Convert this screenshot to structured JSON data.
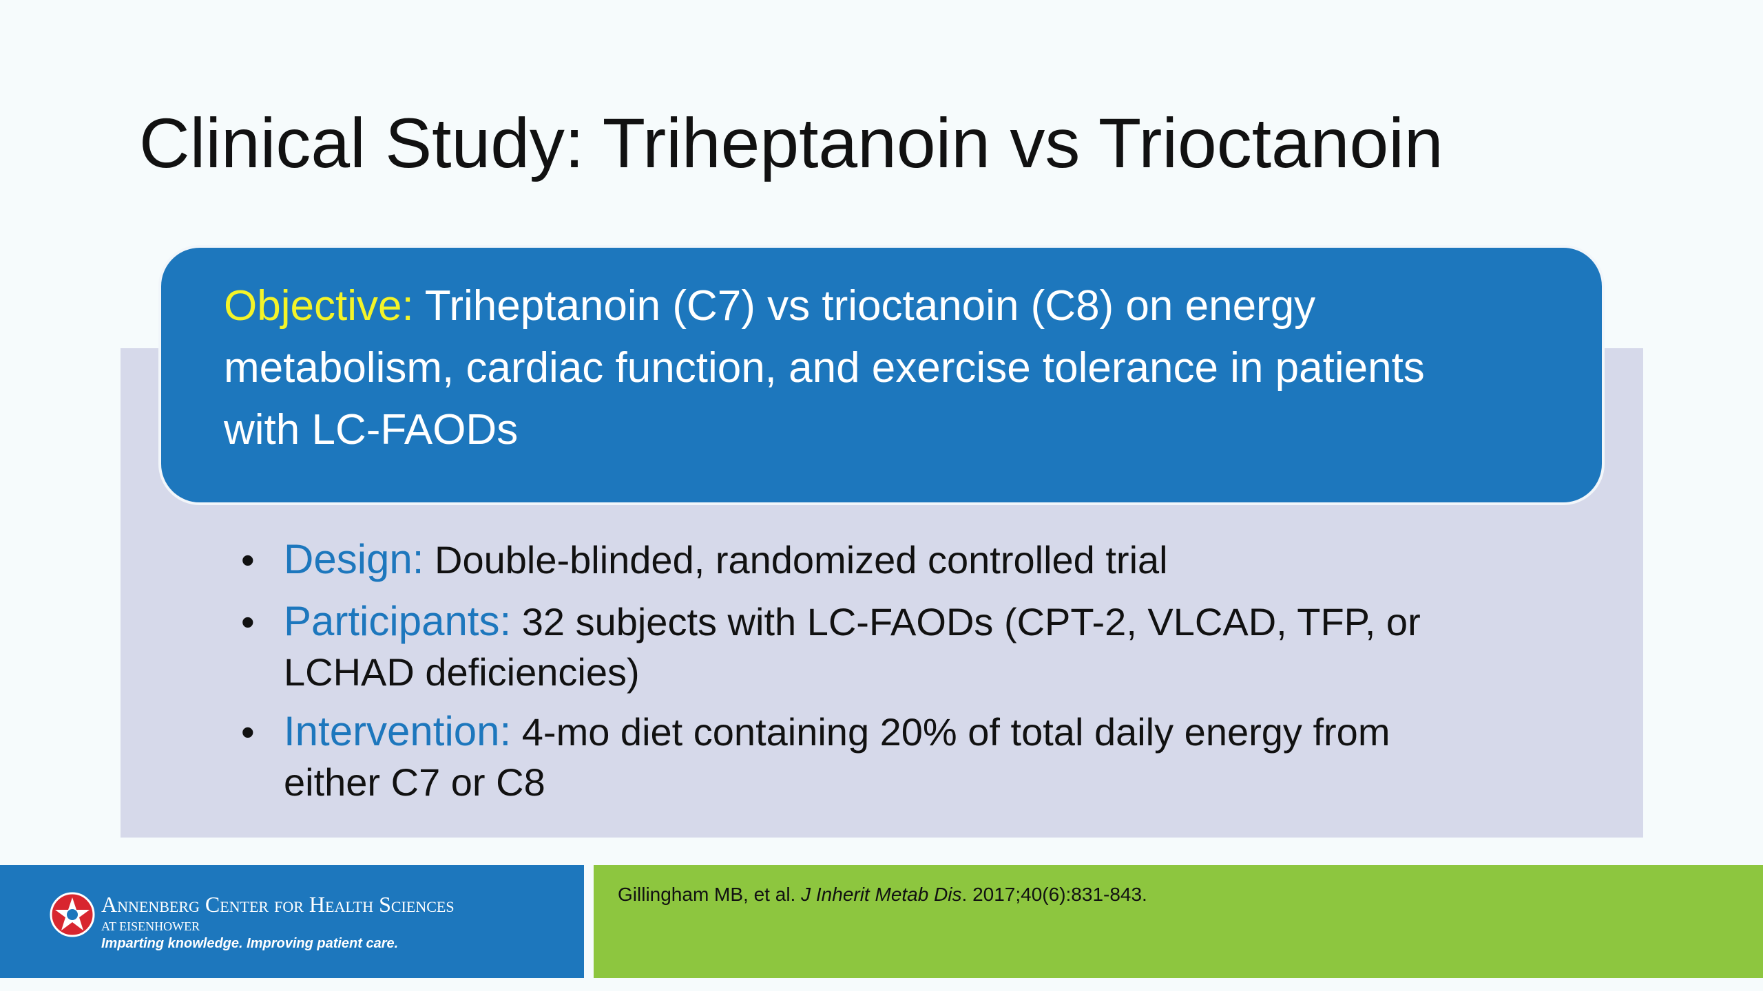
{
  "title": "Clinical Study: Triheptanoin vs Trioctanoin",
  "objective": {
    "label": "Objective:",
    "text": "Triheptanoin (C7) vs trioctanoin (C8) on energy metabolism, cardiac function, and exercise tolerance in patients with LC-FAODs"
  },
  "bullets": [
    {
      "label": "Design:",
      "text": "Double-blinded, randomized controlled trial"
    },
    {
      "label": "Participants:",
      "text": "32 subjects with LC-FAODs (CPT-2, VLCAD, TFP, or LCHAD deficiencies)"
    },
    {
      "label": "Intervention:",
      "text": "4-mo diet containing 20% of total daily energy from either C7 or C8"
    }
  ],
  "footer": {
    "organization": "Annenberg Center for Health Sciences",
    "location": "AT EISENHOWER",
    "tagline": "Imparting knowledge. Improving patient care.",
    "citation": {
      "authors": "Gillingham MB, et al.",
      "journal": "J Inherit Metab Dis",
      "details": ". 2017;40(6):831-843."
    }
  }
}
